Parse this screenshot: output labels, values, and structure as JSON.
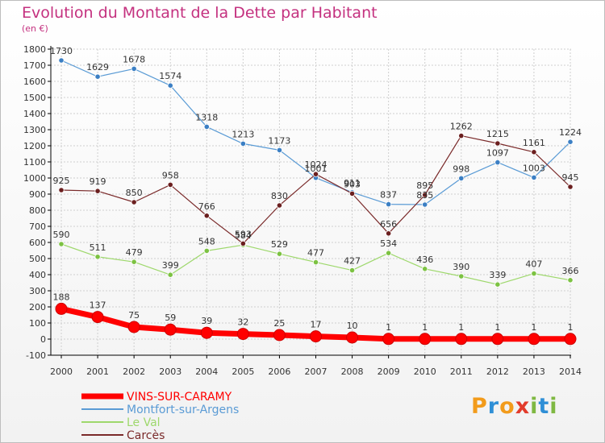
{
  "title": "Evolution du Montant de la Dette par Habitant",
  "subtitle": "(en €)",
  "logo": {
    "text": "Proxiti",
    "letters": [
      "P",
      "r",
      "o",
      "x",
      "i",
      "t",
      "i"
    ],
    "colors": [
      "#f29b1b",
      "#2f8fd6",
      "#f29b1b",
      "#e23b2b",
      "#7fb842",
      "#2f8fd6",
      "#7fb842"
    ]
  },
  "colors": {
    "grid": "#cfcfcf",
    "axis": "#000000",
    "label": "#333333"
  },
  "chart_data": {
    "type": "line",
    "x": [
      "2000",
      "2001",
      "2002",
      "2003",
      "2004",
      "2005",
      "2006",
      "2007",
      "2008",
      "2009",
      "2010",
      "2011",
      "2012",
      "2013",
      "2014"
    ],
    "ylim": [
      -100,
      1800
    ],
    "yticks": [
      -100,
      0,
      100,
      200,
      300,
      400,
      500,
      600,
      700,
      800,
      900,
      1000,
      1100,
      1200,
      1300,
      1400,
      1500,
      1600,
      1700,
      1800
    ],
    "grid": true,
    "legend": "bottom-left",
    "series": [
      {
        "name": "VINS-SUR-CARAMY",
        "color": "#ff0000",
        "marker": "#ff0000",
        "width": 7,
        "values": [
          188,
          137,
          75,
          59,
          39,
          32,
          25,
          17,
          10,
          1,
          1,
          1,
          1,
          1,
          1
        ]
      },
      {
        "name": "Montfort-sur-Argens",
        "color": "#5a9bd5",
        "marker": "#3b7fc4",
        "width": 1.2,
        "values": [
          1730,
          1629,
          1678,
          1574,
          1318,
          1213,
          1173,
          1001,
          911,
          837,
          835,
          998,
          1097,
          1003,
          1224
        ]
      },
      {
        "name": "Le Val",
        "color": "#9ed86c",
        "marker": "#7cc242",
        "width": 1.2,
        "values": [
          590,
          511,
          479,
          399,
          548,
          584,
          529,
          477,
          427,
          534,
          436,
          390,
          339,
          407,
          366
        ]
      },
      {
        "name": "Carcès",
        "color": "#7a2a2a",
        "marker": "#6b1f1f",
        "width": 1.2,
        "values": [
          925,
          919,
          850,
          958,
          766,
          593,
          830,
          1024,
          903,
          656,
          895,
          1262,
          1215,
          1161,
          945
        ]
      }
    ]
  }
}
